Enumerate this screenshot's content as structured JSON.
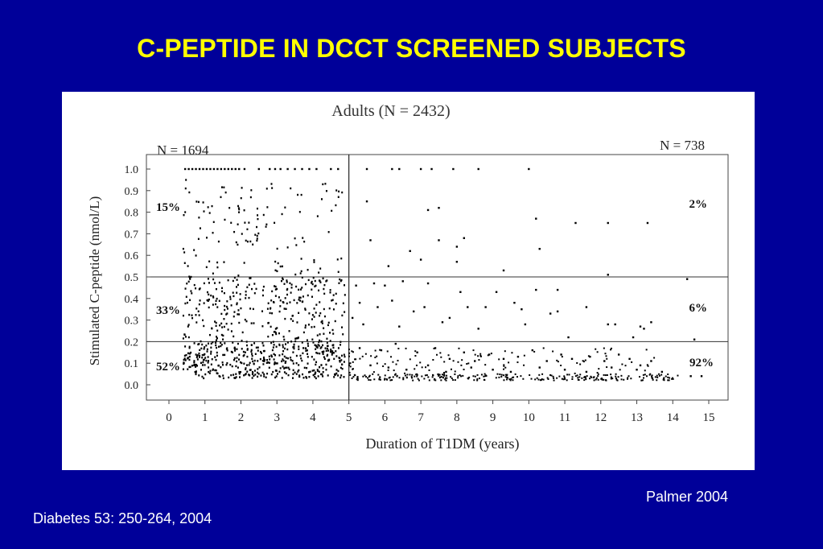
{
  "slide_title": "C-PEPTIDE IN DCCT SCREENED SUBJECTS",
  "credit": "Palmer 2004",
  "citation": "Diabetes 53: 250-264, 2004",
  "chart_data": {
    "type": "scatter",
    "title": "Adults (N = 2432)",
    "xlabel": "Duration of T1DM (years)",
    "ylabel": "Stimulated C-peptide (nmol/L)",
    "xlim": [
      0,
      15
    ],
    "ylim": [
      0,
      1.0
    ],
    "x_ticks": [
      "0",
      "1",
      "2",
      "3",
      "4",
      "5",
      "6",
      "7",
      "8",
      "9",
      "10",
      "11",
      "12",
      "13",
      "14",
      "15"
    ],
    "y_ticks": [
      "0.0",
      "0.1",
      "0.2",
      "0.3",
      "0.4",
      "0.5",
      "0.6",
      "0.7",
      "0.8",
      "0.9",
      "1.0"
    ],
    "divider_x": 5,
    "threshold_lines_y": [
      0.5,
      0.2
    ],
    "groups": [
      {
        "label": "N = 1694",
        "x_range": [
          0,
          5
        ]
      },
      {
        "label": "N = 738",
        "x_range": [
          5,
          15
        ]
      }
    ],
    "region_percentages": {
      "left": [
        "15%",
        "33%",
        "52%"
      ],
      "right": [
        "2%",
        "6%",
        "92%"
      ]
    },
    "colors": {
      "background": "#000099",
      "title": "#ffff00",
      "points": "#000000"
    },
    "series": [
      {
        "points": [
          [
            0.45,
            1.0
          ],
          [
            0.55,
            1.0
          ],
          [
            0.65,
            1.0
          ],
          [
            0.75,
            1.0
          ],
          [
            0.85,
            1.0
          ],
          [
            0.95,
            1.0
          ],
          [
            1.05,
            1.0
          ],
          [
            1.15,
            1.0
          ],
          [
            1.25,
            1.0
          ],
          [
            1.35,
            1.0
          ],
          [
            1.45,
            1.0
          ],
          [
            1.55,
            1.0
          ],
          [
            1.65,
            1.0
          ],
          [
            1.75,
            1.0
          ],
          [
            1.85,
            1.0
          ],
          [
            1.95,
            1.0
          ],
          [
            2.1,
            1.0
          ],
          [
            2.5,
            1.0
          ],
          [
            2.8,
            1.0
          ],
          [
            2.95,
            1.0
          ],
          [
            3.1,
            1.0
          ],
          [
            3.3,
            1.0
          ],
          [
            3.5,
            1.0
          ],
          [
            3.7,
            1.0
          ],
          [
            3.9,
            1.0
          ],
          [
            4.1,
            1.0
          ],
          [
            4.5,
            1.0
          ],
          [
            4.7,
            1.0
          ],
          [
            5.5,
            1.0
          ],
          [
            6.2,
            1.0
          ],
          [
            6.4,
            1.0
          ],
          [
            7.0,
            1.0
          ],
          [
            7.3,
            1.0
          ],
          [
            7.9,
            1.0
          ],
          [
            8.6,
            1.0
          ],
          [
            10.0,
            1.0
          ],
          [
            5.5,
            0.85
          ],
          [
            7.2,
            0.81
          ],
          [
            7.5,
            0.82
          ],
          [
            10.2,
            0.77
          ],
          [
            11.3,
            0.75
          ],
          [
            12.2,
            0.75
          ],
          [
            13.3,
            0.75
          ],
          [
            7.5,
            0.67
          ],
          [
            8.2,
            0.68
          ],
          [
            5.6,
            0.67
          ],
          [
            8.0,
            0.64
          ],
          [
            10.3,
            0.63
          ],
          [
            6.7,
            0.62
          ],
          [
            7.0,
            0.58
          ],
          [
            8.0,
            0.57
          ],
          [
            9.3,
            0.53
          ],
          [
            6.1,
            0.55
          ],
          [
            12.2,
            0.51
          ],
          [
            14.4,
            0.49
          ],
          [
            5.2,
            0.46
          ],
          [
            5.7,
            0.47
          ],
          [
            6.0,
            0.46
          ],
          [
            6.5,
            0.48
          ],
          [
            7.2,
            0.47
          ],
          [
            8.1,
            0.43
          ],
          [
            9.1,
            0.43
          ],
          [
            10.2,
            0.44
          ],
          [
            10.8,
            0.44
          ],
          [
            5.3,
            0.38
          ],
          [
            5.8,
            0.36
          ],
          [
            6.2,
            0.39
          ],
          [
            6.8,
            0.34
          ],
          [
            7.1,
            0.36
          ],
          [
            7.8,
            0.31
          ],
          [
            8.3,
            0.36
          ],
          [
            8.8,
            0.36
          ],
          [
            9.8,
            0.35
          ],
          [
            10.6,
            0.33
          ],
          [
            11.6,
            0.36
          ],
          [
            12.2,
            0.28
          ],
          [
            12.4,
            0.28
          ],
          [
            13.1,
            0.27
          ],
          [
            13.2,
            0.26
          ],
          [
            13.4,
            0.29
          ],
          [
            14.6,
            0.21
          ],
          [
            9.6,
            0.38
          ],
          [
            10.8,
            0.34
          ],
          [
            5.1,
            0.31
          ],
          [
            5.4,
            0.28
          ],
          [
            6.4,
            0.27
          ],
          [
            7.6,
            0.29
          ],
          [
            8.6,
            0.26
          ],
          [
            9.9,
            0.28
          ],
          [
            11.1,
            0.22
          ],
          [
            12.9,
            0.22
          ],
          [
            5.3,
            0.17
          ],
          [
            5.9,
            0.16
          ],
          [
            6.3,
            0.19
          ],
          [
            6.9,
            0.15
          ],
          [
            7.4,
            0.17
          ],
          [
            7.8,
            0.12
          ],
          [
            8.2,
            0.15
          ],
          [
            8.5,
            0.11
          ],
          [
            8.9,
            0.14
          ],
          [
            9.3,
            0.12
          ],
          [
            9.7,
            0.13
          ],
          [
            10.1,
            0.16
          ],
          [
            10.5,
            0.11
          ],
          [
            10.9,
            0.14
          ],
          [
            11.2,
            0.12
          ],
          [
            11.7,
            0.13
          ],
          [
            12.1,
            0.11
          ],
          [
            12.5,
            0.14
          ],
          [
            12.8,
            0.12
          ],
          [
            13.1,
            0.09
          ],
          [
            13.4,
            0.11
          ],
          [
            13.7,
            0.06
          ],
          [
            5.6,
            0.09
          ],
          [
            6.1,
            0.08
          ],
          [
            6.6,
            0.07
          ],
          [
            7.2,
            0.09
          ],
          [
            7.7,
            0.06
          ],
          [
            8.4,
            0.08
          ],
          [
            9.0,
            0.07
          ],
          [
            9.5,
            0.06
          ],
          [
            10.3,
            0.08
          ],
          [
            11.0,
            0.07
          ],
          [
            11.6,
            0.06
          ],
          [
            12.3,
            0.08
          ],
          [
            13.0,
            0.07
          ],
          [
            14.5,
            0.04
          ],
          [
            14.8,
            0.04
          ]
        ]
      }
    ]
  }
}
